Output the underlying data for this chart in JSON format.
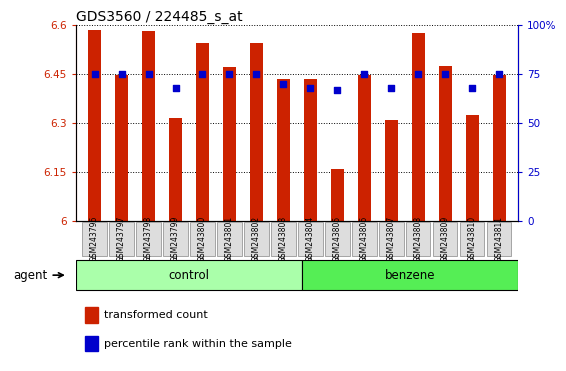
{
  "title": "GDS3560 / 224485_s_at",
  "samples": [
    "GSM243796",
    "GSM243797",
    "GSM243798",
    "GSM243799",
    "GSM243800",
    "GSM243801",
    "GSM243802",
    "GSM243803",
    "GSM243804",
    "GSM243805",
    "GSM243806",
    "GSM243807",
    "GSM243808",
    "GSM243809",
    "GSM243810",
    "GSM243811"
  ],
  "bar_values": [
    6.585,
    6.445,
    6.58,
    6.315,
    6.545,
    6.47,
    6.545,
    6.435,
    6.435,
    6.16,
    6.445,
    6.31,
    6.575,
    6.475,
    6.325,
    6.445
  ],
  "dot_values": [
    75,
    75,
    75,
    68,
    75,
    75,
    75,
    70,
    68,
    67,
    75,
    68,
    75,
    75,
    68,
    75
  ],
  "bar_color": "#cc2200",
  "dot_color": "#0000cc",
  "ylim_left": [
    6.0,
    6.6
  ],
  "ylim_right": [
    0,
    100
  ],
  "yticks_left": [
    6.0,
    6.15,
    6.3,
    6.45,
    6.6
  ],
  "ytick_labels_left": [
    "6",
    "6.15",
    "6.3",
    "6.45",
    "6.6"
  ],
  "yticks_right": [
    0,
    25,
    50,
    75,
    100
  ],
  "ytick_labels_right": [
    "0",
    "25",
    "50",
    "75",
    "100%"
  ],
  "groups": [
    {
      "label": "control",
      "color": "#aaffaa"
    },
    {
      "label": "benzene",
      "color": "#55ee55"
    }
  ],
  "group_split": 8,
  "agent_label": "agent",
  "legend": [
    {
      "label": "transformed count",
      "color": "#cc2200"
    },
    {
      "label": "percentile rank within the sample",
      "color": "#0000cc"
    }
  ],
  "background_color": "#ffffff",
  "title_fontsize": 10,
  "bar_width": 0.5
}
